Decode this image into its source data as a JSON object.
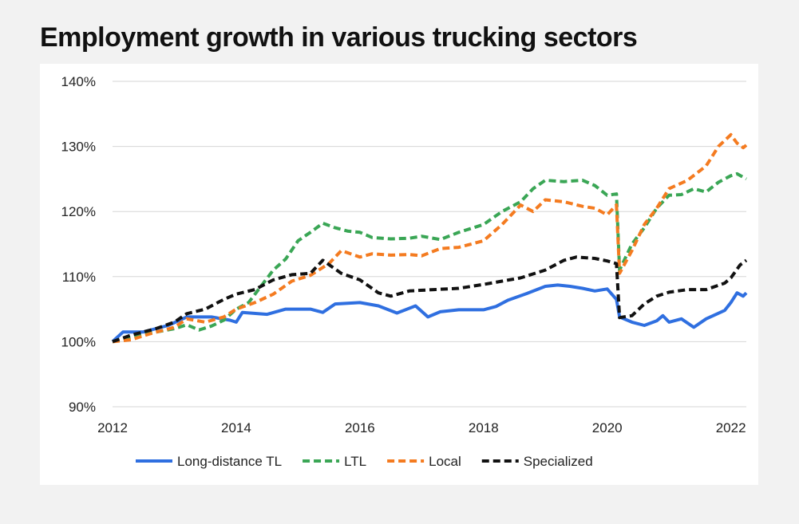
{
  "chart_data": {
    "type": "line",
    "title": "Employment growth in various trucking sectors",
    "xlabel": "",
    "ylabel": "",
    "xlim": [
      2012,
      2022.25
    ],
    "ylim": [
      90,
      140
    ],
    "x_ticks": [
      {
        "value": 2012,
        "label": "2012"
      },
      {
        "value": 2014,
        "label": "2014"
      },
      {
        "value": 2016,
        "label": "2016"
      },
      {
        "value": 2018,
        "label": "2018"
      },
      {
        "value": 2020,
        "label": "2020"
      },
      {
        "value": 2022,
        "label": "2022"
      }
    ],
    "y_ticks": [
      {
        "value": 90,
        "label": "90%"
      },
      {
        "value": 100,
        "label": "100%"
      },
      {
        "value": 110,
        "label": "110%"
      },
      {
        "value": 120,
        "label": "120%"
      },
      {
        "value": 130,
        "label": "130%"
      },
      {
        "value": 140,
        "label": "140%"
      }
    ],
    "grid": "horizontal",
    "legend_position": "bottom",
    "series": [
      {
        "name": "Long-distance TL",
        "color": "#2f6fe0",
        "dash": "solid",
        "points": [
          [
            2012,
            100
          ],
          [
            2012.17,
            101.5
          ],
          [
            2012.5,
            101.5
          ],
          [
            2012.9,
            102.5
          ],
          [
            2013.2,
            103.8
          ],
          [
            2013.6,
            103.8
          ],
          [
            2013.9,
            103.3
          ],
          [
            2014.0,
            103
          ],
          [
            2014.1,
            104.5
          ],
          [
            2014.5,
            104.2
          ],
          [
            2014.8,
            105
          ],
          [
            2015.2,
            105
          ],
          [
            2015.4,
            104.5
          ],
          [
            2015.6,
            105.8
          ],
          [
            2016.0,
            106
          ],
          [
            2016.3,
            105.5
          ],
          [
            2016.6,
            104.4
          ],
          [
            2016.9,
            105.5
          ],
          [
            2017.1,
            103.8
          ],
          [
            2017.3,
            104.6
          ],
          [
            2017.6,
            104.9
          ],
          [
            2018.0,
            104.9
          ],
          [
            2018.2,
            105.4
          ],
          [
            2018.4,
            106.4
          ],
          [
            2018.7,
            107.4
          ],
          [
            2019.0,
            108.5
          ],
          [
            2019.2,
            108.7
          ],
          [
            2019.4,
            108.5
          ],
          [
            2019.6,
            108.2
          ],
          [
            2019.8,
            107.8
          ],
          [
            2020.0,
            108.1
          ],
          [
            2020.15,
            106.5
          ],
          [
            2020.2,
            103.8
          ],
          [
            2020.4,
            103
          ],
          [
            2020.6,
            102.5
          ],
          [
            2020.8,
            103.2
          ],
          [
            2020.9,
            104
          ],
          [
            2021.0,
            103
          ],
          [
            2021.2,
            103.5
          ],
          [
            2021.4,
            102.2
          ],
          [
            2021.6,
            103.5
          ],
          [
            2021.9,
            104.8
          ],
          [
            2022.0,
            106
          ],
          [
            2022.1,
            107.5
          ],
          [
            2022.2,
            107
          ],
          [
            2022.25,
            107.5
          ]
        ]
      },
      {
        "name": "LTL",
        "color": "#3aa655",
        "dash": "dashed",
        "points": [
          [
            2012,
            100
          ],
          [
            2012.3,
            100.7
          ],
          [
            2012.6,
            101.3
          ],
          [
            2013.0,
            102
          ],
          [
            2013.2,
            102.6
          ],
          [
            2013.4,
            101.8
          ],
          [
            2013.6,
            102.4
          ],
          [
            2013.8,
            103.3
          ],
          [
            2014.0,
            105
          ],
          [
            2014.2,
            106
          ],
          [
            2014.4,
            108.5
          ],
          [
            2014.6,
            111
          ],
          [
            2014.8,
            112.7
          ],
          [
            2015.0,
            115.5
          ],
          [
            2015.2,
            116.8
          ],
          [
            2015.4,
            118.2
          ],
          [
            2015.6,
            117.5
          ],
          [
            2015.8,
            117
          ],
          [
            2016.0,
            116.8
          ],
          [
            2016.2,
            116
          ],
          [
            2016.5,
            115.8
          ],
          [
            2016.8,
            115.9
          ],
          [
            2017.0,
            116.2
          ],
          [
            2017.3,
            115.7
          ],
          [
            2017.6,
            116.8
          ],
          [
            2018.0,
            118
          ],
          [
            2018.3,
            120
          ],
          [
            2018.6,
            121.5
          ],
          [
            2018.8,
            123.5
          ],
          [
            2019.0,
            124.8
          ],
          [
            2019.3,
            124.6
          ],
          [
            2019.6,
            124.8
          ],
          [
            2019.8,
            124
          ],
          [
            2020.0,
            122.5
          ],
          [
            2020.15,
            122.7
          ],
          [
            2020.2,
            111
          ],
          [
            2020.4,
            115
          ],
          [
            2020.6,
            117.5
          ],
          [
            2020.8,
            120.5
          ],
          [
            2021.0,
            122.5
          ],
          [
            2021.2,
            122.6
          ],
          [
            2021.4,
            123.5
          ],
          [
            2021.6,
            123
          ],
          [
            2021.8,
            124.5
          ],
          [
            2022.0,
            125.5
          ],
          [
            2022.1,
            125.8
          ],
          [
            2022.25,
            125
          ]
        ]
      },
      {
        "name": "Local",
        "color": "#f47b20",
        "dash": "dashed",
        "points": [
          [
            2012,
            100
          ],
          [
            2012.3,
            100.3
          ],
          [
            2012.6,
            101.2
          ],
          [
            2013.0,
            102.2
          ],
          [
            2013.2,
            103.5
          ],
          [
            2013.5,
            103
          ],
          [
            2013.8,
            103.8
          ],
          [
            2014.0,
            105
          ],
          [
            2014.3,
            106
          ],
          [
            2014.6,
            107.3
          ],
          [
            2014.9,
            109.3
          ],
          [
            2015.2,
            110.2
          ],
          [
            2015.5,
            112
          ],
          [
            2015.7,
            114
          ],
          [
            2016.0,
            113
          ],
          [
            2016.2,
            113.5
          ],
          [
            2016.5,
            113.3
          ],
          [
            2016.8,
            113.4
          ],
          [
            2017.0,
            113.2
          ],
          [
            2017.3,
            114.3
          ],
          [
            2017.6,
            114.5
          ],
          [
            2018.0,
            115.5
          ],
          [
            2018.3,
            118
          ],
          [
            2018.6,
            121
          ],
          [
            2018.8,
            120
          ],
          [
            2019.0,
            121.8
          ],
          [
            2019.3,
            121.5
          ],
          [
            2019.6,
            120.8
          ],
          [
            2019.8,
            120.5
          ],
          [
            2020.0,
            119.5
          ],
          [
            2020.15,
            121
          ],
          [
            2020.2,
            110.5
          ],
          [
            2020.4,
            114
          ],
          [
            2020.6,
            118
          ],
          [
            2020.8,
            120.5
          ],
          [
            2021.0,
            123.5
          ],
          [
            2021.3,
            124.8
          ],
          [
            2021.6,
            127
          ],
          [
            2021.8,
            130
          ],
          [
            2022.0,
            131.8
          ],
          [
            2022.1,
            130.5
          ],
          [
            2022.2,
            129.8
          ],
          [
            2022.25,
            130.2
          ]
        ]
      },
      {
        "name": "Specialized",
        "color": "#111111",
        "dash": "dashed",
        "points": [
          [
            2012,
            100
          ],
          [
            2012.3,
            101
          ],
          [
            2012.7,
            102
          ],
          [
            2013.0,
            103
          ],
          [
            2013.2,
            104.3
          ],
          [
            2013.5,
            105
          ],
          [
            2013.8,
            106.5
          ],
          [
            2014.0,
            107.3
          ],
          [
            2014.3,
            108
          ],
          [
            2014.6,
            109.5
          ],
          [
            2014.9,
            110.3
          ],
          [
            2015.2,
            110.5
          ],
          [
            2015.4,
            112.5
          ],
          [
            2015.7,
            110.5
          ],
          [
            2016.0,
            109.5
          ],
          [
            2016.3,
            107.5
          ],
          [
            2016.5,
            107
          ],
          [
            2016.8,
            107.8
          ],
          [
            2017.2,
            108
          ],
          [
            2017.6,
            108.2
          ],
          [
            2018.0,
            108.8
          ],
          [
            2018.3,
            109.3
          ],
          [
            2018.6,
            109.8
          ],
          [
            2019.0,
            111
          ],
          [
            2019.3,
            112.5
          ],
          [
            2019.5,
            113
          ],
          [
            2019.8,
            112.8
          ],
          [
            2020.0,
            112.4
          ],
          [
            2020.15,
            112
          ],
          [
            2020.2,
            103.7
          ],
          [
            2020.4,
            104
          ],
          [
            2020.6,
            105.8
          ],
          [
            2020.8,
            107
          ],
          [
            2021.0,
            107.6
          ],
          [
            2021.3,
            108
          ],
          [
            2021.6,
            108
          ],
          [
            2021.9,
            109
          ],
          [
            2022.0,
            109.8
          ],
          [
            2022.15,
            111.8
          ],
          [
            2022.25,
            112.5
          ]
        ]
      }
    ]
  }
}
